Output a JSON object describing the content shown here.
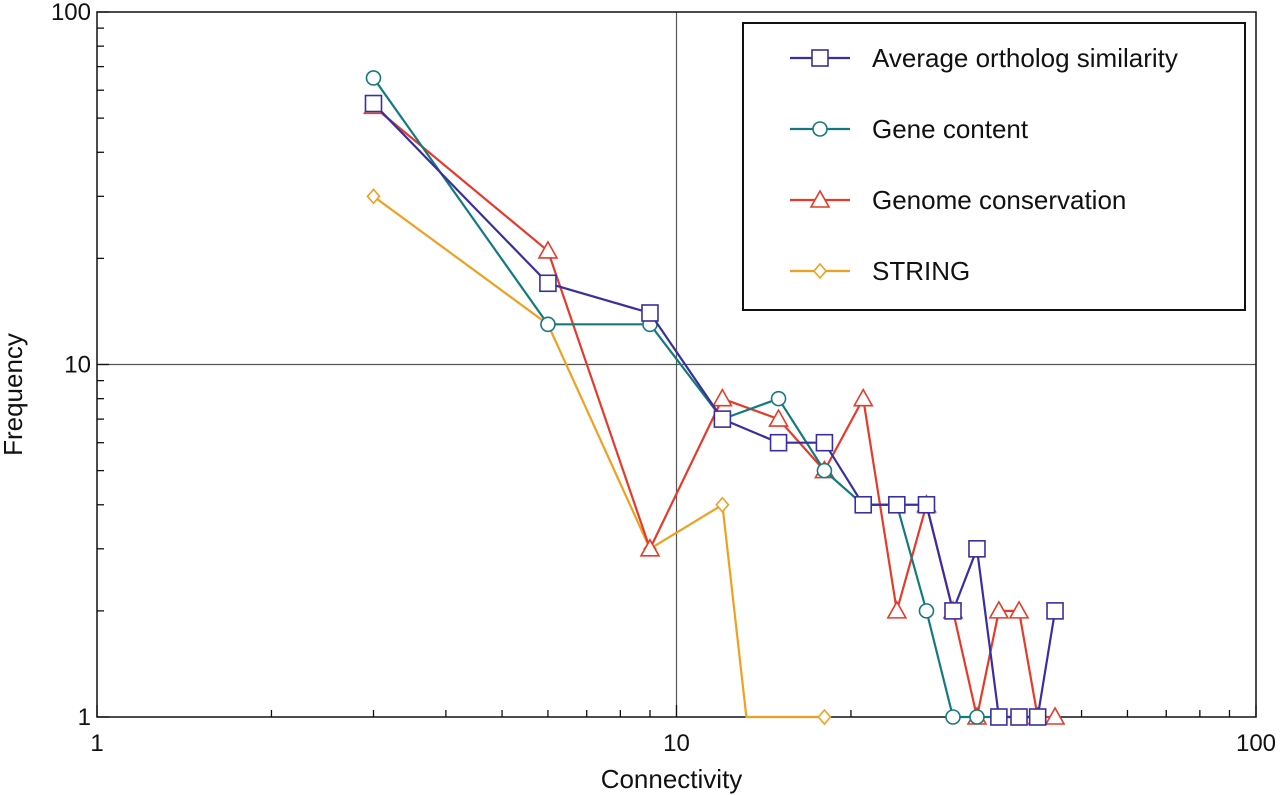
{
  "chart_data": {
    "type": "line",
    "title": "",
    "xlabel": "Connectivity",
    "ylabel": "Frequency",
    "x_scale": "log",
    "y_scale": "log",
    "xlim": [
      1,
      100
    ],
    "ylim": [
      1,
      100
    ],
    "x_ticks": [
      "1",
      "10",
      "100"
    ],
    "y_ticks": [
      "1",
      "10",
      "100"
    ],
    "grid": true,
    "legend_position": "top-right",
    "series": [
      {
        "name": "Average ortholog similarity",
        "color": "#3a2f9e",
        "marker": "square",
        "x": [
          3,
          6,
          9,
          12,
          15,
          18,
          21,
          24,
          27,
          30,
          33,
          36,
          39,
          42,
          45
        ],
        "y": [
          55,
          17,
          14,
          7,
          6,
          6,
          4,
          4,
          4,
          2,
          3,
          1,
          1,
          1,
          2
        ]
      },
      {
        "name": "Gene content",
        "color": "#147a80",
        "marker": "circle",
        "x": [
          3,
          6,
          9,
          12,
          15,
          18,
          21,
          24,
          27,
          30,
          33,
          36,
          39,
          42
        ],
        "y": [
          65,
          13,
          13,
          7,
          8,
          5,
          4,
          4,
          2,
          1,
          1,
          1,
          1,
          1
        ]
      },
      {
        "name": "Genome conservation",
        "color": "#e63a2a",
        "marker": "triangle",
        "x": [
          3,
          6,
          9,
          12,
          15,
          18,
          21,
          24,
          27,
          30,
          33,
          36,
          39,
          42,
          45
        ],
        "y": [
          54,
          21,
          3,
          8,
          7,
          5,
          8,
          2,
          4,
          2,
          1,
          2,
          2,
          1,
          1
        ]
      },
      {
        "name": "STRING",
        "color": "#f0a020",
        "marker": "diamond",
        "x": [
          3,
          6,
          9,
          12,
          13.2,
          18
        ],
        "y": [
          30,
          13,
          3,
          4,
          1,
          1
        ]
      }
    ]
  }
}
